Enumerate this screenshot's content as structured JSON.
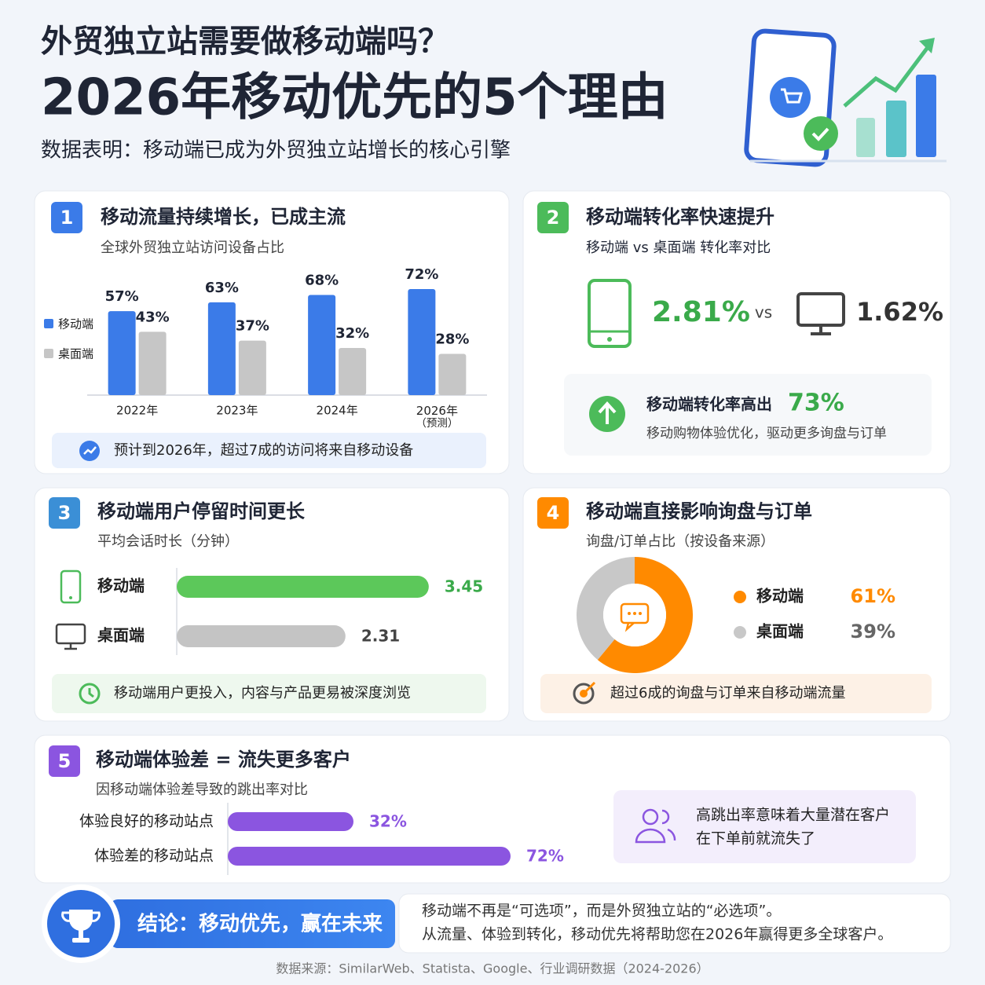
{
  "header": {
    "title_line1": "外贸独立站需要做移动端吗？",
    "title_line2": "2026年移动优先的5个理由",
    "subtitle": "数据表明：移动端已成为外贸独立站增长的核心引擎"
  },
  "chart_data": [
    {
      "type": "bar",
      "number": "1",
      "title": "移动流量持续增长，已成主流",
      "subtitle": "全球外贸独立站访问设备占比",
      "categories": [
        "2022年",
        "2023年",
        "2024年",
        "2026年\n（预测）"
      ],
      "series": [
        {
          "name": "移动端",
          "color": "#3b7be8",
          "values": [
            57,
            63,
            68,
            72
          ],
          "value_labels": [
            "57%",
            "63%",
            "68%",
            "72%"
          ]
        },
        {
          "name": "桌面端",
          "color": "#c6c6c6",
          "values": [
            43,
            37,
            32,
            28
          ],
          "value_labels": [
            "43%",
            "37%",
            "32%",
            "28%"
          ]
        }
      ],
      "ylim": [
        0,
        80
      ],
      "legend": "left",
      "note": "预计到2026年，超过7成的访问将来自移动设备"
    },
    {
      "type": "barh",
      "number": "3",
      "title": "移动端用户停留时间更长",
      "subtitle": "平均会话时长（分钟）",
      "categories": [
        "移动端",
        "桌面端"
      ],
      "values": [
        3.45,
        2.31
      ],
      "colors": [
        "#5cc85a",
        "#c4c4c4"
      ],
      "xlim": [
        0,
        4
      ],
      "note": "移动端用户更投入，内容与产品更易被深度浏览"
    },
    {
      "type": "pie",
      "number": "4",
      "title": "移动端直接影响询盘与订单",
      "subtitle": "询盘/订单占比（按设备来源）",
      "categories": [
        "移动端",
        "桌面端"
      ],
      "values": [
        61,
        39
      ],
      "value_labels": [
        "61%",
        "39%"
      ],
      "colors": [
        "#ff8a00",
        "#c8c8c8"
      ],
      "donut": true,
      "note": "超过6成的询盘与订单来自移动端流量"
    },
    {
      "type": "barh",
      "number": "5",
      "title": "移动端体验差 = 流失更多客户",
      "subtitle": "因移动端体验差导致的跳出率对比",
      "categories": [
        "体验良好的移动站点",
        "体验差的移动站点"
      ],
      "values": [
        32,
        72
      ],
      "value_labels": [
        "32%",
        "72%"
      ],
      "colors": [
        "#8b55e0",
        "#8b55e0"
      ],
      "xlim": [
        0,
        80
      ],
      "side_note": [
        "高跳出率意味着大量潜在客户",
        "在下单前就流失了"
      ]
    }
  ],
  "card2": {
    "number": "2",
    "title": "移动端转化率快速提升",
    "subtitle": "移动端 vs 桌面端 转化率对比",
    "mobile_rate": "2.81%",
    "vs": "vs",
    "desktop_rate": "1.62%",
    "highlight_text": "移动端转化率高出",
    "highlight_value": "73%",
    "note": "移动购物体验优化，驱动更多询盘与订单"
  },
  "conclusion": {
    "label": "结论：移动优先，赢在未来",
    "lines": [
      "移动端不再是“可选项”，而是外贸独立站的“必选项”。",
      "从流量、体验到转化，移动优先将帮助您在2026年赢得更多全球客户。"
    ]
  },
  "source": "数据来源：SimilarWeb、Statista、Google、行业调研数据（2024-2026）"
}
